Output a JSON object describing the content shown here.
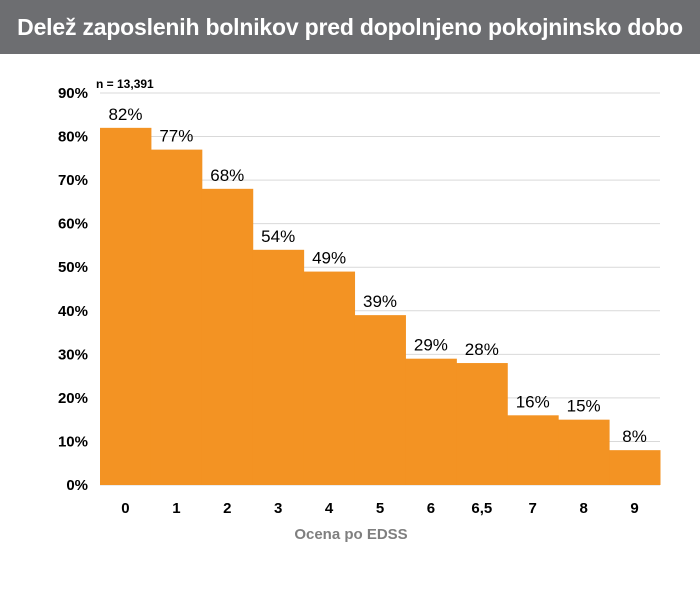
{
  "title": "Delež zaposlenih bolnikov pred dopolnjeno pokojninsko dobo",
  "annotation": "n = 13,391",
  "colors": {
    "bar": "#f39323",
    "title_bg": "#6d6e71",
    "grid": "#d9d9d9",
    "axis_label": "#7f7f7f"
  },
  "chart_data": {
    "type": "bar",
    "title": "Delež zaposlenih bolnikov pred dopolnjeno pokojninsko dobo",
    "xlabel": "Ocena po EDSS",
    "ylabel": "",
    "categories": [
      "0",
      "1",
      "2",
      "3",
      "4",
      "5",
      "6",
      "6,5",
      "7",
      "8",
      "9"
    ],
    "values": [
      82,
      77,
      68,
      54,
      49,
      39,
      29,
      28,
      16,
      15,
      8
    ],
    "data_labels": [
      "82%",
      "77%",
      "68%",
      "54%",
      "49%",
      "39%",
      "29%",
      "28%",
      "16%",
      "15%",
      "8%"
    ],
    "y_ticks": [
      "0%",
      "10%",
      "20%",
      "30%",
      "40%",
      "50%",
      "60%",
      "70%",
      "80%",
      "90%"
    ],
    "ylim": [
      0,
      90
    ],
    "grid": true,
    "legend": "none"
  }
}
